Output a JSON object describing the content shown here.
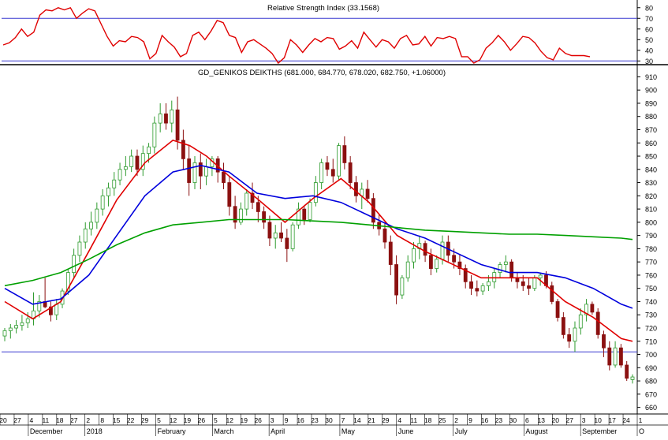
{
  "chart_data": [
    {
      "type": "line",
      "title": "Relative Strength Index (33.1568)",
      "ylim": [
        28,
        85
      ],
      "yticks": [
        30,
        40,
        50,
        60,
        70,
        80
      ],
      "reference_lines": [
        30,
        70
      ],
      "series": [
        {
          "color": "#e00000",
          "x": [
            0,
            2,
            4,
            6,
            8,
            10,
            12,
            14,
            16,
            18,
            20,
            22,
            24,
            26,
            28,
            30,
            32,
            34,
            36,
            38,
            40,
            42,
            44,
            46,
            48,
            50,
            52,
            54,
            56,
            58,
            60,
            62,
            64,
            66,
            68,
            70,
            72,
            74,
            76,
            78,
            80,
            82,
            84,
            86,
            88,
            90,
            92,
            94,
            96,
            98,
            100,
            102,
            104,
            106,
            108,
            110,
            112,
            114,
            116,
            118,
            120,
            122,
            124,
            126,
            128,
            130,
            132,
            134,
            136,
            138,
            140,
            142,
            144,
            146,
            148,
            150,
            152,
            154,
            156,
            158,
            160,
            162,
            164,
            166,
            168,
            170,
            172,
            174,
            176,
            178,
            180,
            182,
            184,
            186,
            188,
            190,
            192
          ],
          "values": [
            45,
            47,
            52,
            60,
            53,
            57,
            73,
            78,
            77,
            80,
            78,
            80,
            70,
            75,
            79,
            77,
            65,
            53,
            44,
            49,
            48,
            53,
            52,
            48,
            32,
            37,
            54,
            48,
            43,
            34,
            37,
            54,
            57,
            50,
            58,
            68,
            66,
            54,
            52,
            38,
            48,
            50,
            46,
            42,
            37,
            28,
            33,
            50,
            45,
            38,
            45,
            51,
            48,
            52,
            51,
            41,
            44,
            49,
            42,
            57,
            50,
            43,
            50,
            48,
            42,
            51,
            54,
            45,
            46,
            53,
            44,
            52,
            51,
            53,
            51,
            34,
            34,
            28,
            31,
            42,
            47,
            54,
            48,
            40,
            46,
            53,
            52,
            47,
            39,
            33,
            31,
            42,
            37,
            35,
            35,
            35,
            34
          ]
        }
      ]
    },
    {
      "type": "candlestick",
      "title": "GD_GENIKOS DEIKTHS (681.000, 684.770, 678.020, 682.750, +1.06000)",
      "ylim": [
        655,
        918
      ],
      "yticks": [
        660,
        670,
        680,
        690,
        700,
        710,
        720,
        730,
        740,
        750,
        760,
        770,
        780,
        790,
        800,
        810,
        820,
        830,
        840,
        850,
        860,
        870,
        880,
        890,
        900,
        910
      ],
      "reference_lines": [
        702
      ],
      "x_tick_labels": [
        "20",
        "27",
        "4",
        "11",
        "18",
        "27",
        "2",
        "8",
        "15",
        "22",
        "29",
        "5",
        "12",
        "19",
        "26",
        "5",
        "12",
        "19",
        "26",
        "3",
        "9",
        "16",
        "23",
        "30",
        "7",
        "14",
        "21",
        "29",
        "4",
        "11",
        "18",
        "25",
        "2",
        "9",
        "16",
        "23",
        "30",
        "6",
        "13",
        "20",
        "27",
        "3",
        "10",
        "17",
        "24",
        "1"
      ],
      "month_labels": [
        "December",
        "2018",
        "February",
        "March",
        "April",
        "May",
        "June",
        "July",
        "August",
        "September",
        "O"
      ],
      "ohlc": [
        [
          714,
          720,
          710,
          718
        ],
        [
          718,
          723,
          712,
          720
        ],
        [
          720,
          726,
          716,
          722
        ],
        [
          722,
          730,
          718,
          724
        ],
        [
          724,
          732,
          720,
          727
        ],
        [
          727,
          747,
          722,
          733
        ],
        [
          733,
          745,
          728,
          740
        ],
        [
          740,
          758,
          735,
          736
        ],
        [
          736,
          740,
          725,
          730
        ],
        [
          730,
          742,
          726,
          738
        ],
        [
          738,
          750,
          735,
          748
        ],
        [
          748,
          765,
          745,
          762
        ],
        [
          762,
          780,
          758,
          775
        ],
        [
          775,
          790,
          770,
          785
        ],
        [
          785,
          800,
          780,
          795
        ],
        [
          795,
          808,
          790,
          800
        ],
        [
          800,
          815,
          795,
          810
        ],
        [
          810,
          825,
          805,
          820
        ],
        [
          820,
          830,
          812,
          826
        ],
        [
          826,
          838,
          820,
          832
        ],
        [
          832,
          845,
          828,
          840
        ],
        [
          840,
          850,
          835,
          842
        ],
        [
          842,
          855,
          838,
          850
        ],
        [
          850,
          855,
          835,
          840
        ],
        [
          840,
          858,
          835,
          852
        ],
        [
          852,
          860,
          845,
          857
        ],
        [
          857,
          880,
          852,
          875
        ],
        [
          875,
          890,
          868,
          882
        ],
        [
          882,
          890,
          870,
          875
        ],
        [
          875,
          892,
          868,
          885
        ],
        [
          885,
          895,
          855,
          862
        ],
        [
          862,
          870,
          840,
          848
        ],
        [
          848,
          858,
          820,
          830
        ],
        [
          830,
          850,
          825,
          845
        ],
        [
          845,
          852,
          825,
          835
        ],
        [
          835,
          848,
          828,
          842
        ],
        [
          842,
          850,
          835,
          848
        ],
        [
          848,
          850,
          830,
          838
        ],
        [
          838,
          845,
          825,
          830
        ],
        [
          830,
          835,
          805,
          812
        ],
        [
          812,
          820,
          795,
          800
        ],
        [
          800,
          815,
          798,
          810
        ],
        [
          810,
          825,
          805,
          822
        ],
        [
          822,
          830,
          810,
          815
        ],
        [
          815,
          820,
          800,
          808
        ],
        [
          808,
          812,
          795,
          800
        ],
        [
          800,
          805,
          782,
          788
        ],
        [
          788,
          798,
          780,
          792
        ],
        [
          792,
          800,
          785,
          788
        ],
        [
          788,
          795,
          770,
          780
        ],
        [
          780,
          800,
          778,
          798
        ],
        [
          798,
          815,
          795,
          810
        ],
        [
          810,
          812,
          798,
          802
        ],
        [
          802,
          818,
          800,
          815
        ],
        [
          815,
          835,
          812,
          830
        ],
        [
          830,
          848,
          825,
          845
        ],
        [
          845,
          850,
          835,
          840
        ],
        [
          840,
          848,
          830,
          835
        ],
        [
          835,
          860,
          832,
          858
        ],
        [
          858,
          865,
          840,
          845
        ],
        [
          845,
          850,
          825,
          830
        ],
        [
          830,
          835,
          815,
          820
        ],
        [
          820,
          830,
          810,
          825
        ],
        [
          825,
          832,
          815,
          818
        ],
        [
          818,
          822,
          795,
          800
        ],
        [
          800,
          806,
          790,
          795
        ],
        [
          795,
          800,
          780,
          785
        ],
        [
          785,
          790,
          760,
          768
        ],
        [
          768,
          775,
          738,
          745
        ],
        [
          745,
          760,
          742,
          758
        ],
        [
          758,
          775,
          755,
          770
        ],
        [
          770,
          785,
          765,
          780
        ],
        [
          780,
          790,
          772,
          784
        ],
        [
          784,
          786,
          770,
          775
        ],
        [
          775,
          780,
          760,
          765
        ],
        [
          765,
          775,
          762,
          772
        ],
        [
          772,
          790,
          768,
          785
        ],
        [
          785,
          790,
          770,
          775
        ],
        [
          775,
          780,
          765,
          770
        ],
        [
          770,
          776,
          760,
          765
        ],
        [
          765,
          768,
          750,
          755
        ],
        [
          755,
          760,
          745,
          750
        ],
        [
          750,
          756,
          744,
          748
        ],
        [
          748,
          754,
          745,
          752
        ],
        [
          752,
          760,
          748,
          755
        ],
        [
          755,
          765,
          750,
          762
        ],
        [
          762,
          770,
          758,
          768
        ],
        [
          768,
          775,
          762,
          770
        ],
        [
          770,
          772,
          755,
          758
        ],
        [
          758,
          762,
          750,
          755
        ],
        [
          755,
          760,
          748,
          752
        ],
        [
          752,
          758,
          745,
          750
        ],
        [
          750,
          760,
          748,
          758
        ],
        [
          758,
          762,
          752,
          760
        ],
        [
          760,
          763,
          750,
          752
        ],
        [
          752,
          755,
          738,
          740
        ],
        [
          740,
          742,
          725,
          728
        ],
        [
          728,
          732,
          712,
          715
        ],
        [
          715,
          720,
          705,
          710
        ],
        [
          710,
          725,
          702,
          720
        ],
        [
          720,
          735,
          715,
          730
        ],
        [
          730,
          742,
          725,
          738
        ],
        [
          738,
          740,
          730,
          732
        ],
        [
          732,
          735,
          712,
          715
        ],
        [
          715,
          718,
          698,
          705
        ],
        [
          705,
          710,
          688,
          692
        ],
        [
          692,
          710,
          690,
          705
        ],
        [
          705,
          708,
          690,
          692
        ],
        [
          692,
          695,
          680,
          682
        ],
        [
          681,
          685,
          678,
          683
        ]
      ],
      "series": [
        {
          "color": "#e00000",
          "x": [
            0,
            5,
            10,
            15,
            20,
            25,
            30,
            33,
            36,
            40,
            45,
            50,
            55,
            60,
            65,
            70,
            75,
            80,
            85,
            90,
            95,
            100,
            105,
            110,
            112
          ],
          "values": [
            740,
            727,
            740,
            778,
            817,
            845,
            862,
            858,
            850,
            835,
            818,
            800,
            818,
            833,
            815,
            790,
            778,
            768,
            758,
            758,
            758,
            740,
            728,
            712,
            710
          ]
        },
        {
          "color": "#0000dd",
          "x": [
            0,
            5,
            10,
            15,
            20,
            25,
            30,
            35,
            40,
            45,
            50,
            55,
            60,
            65,
            70,
            75,
            80,
            85,
            90,
            95,
            100,
            105,
            110,
            112
          ],
          "values": [
            750,
            738,
            742,
            760,
            790,
            820,
            838,
            843,
            838,
            822,
            818,
            820,
            815,
            805,
            795,
            788,
            778,
            768,
            762,
            762,
            758,
            750,
            738,
            735
          ]
        },
        {
          "color": "#00a000",
          "x": [
            0,
            5,
            10,
            15,
            20,
            25,
            30,
            35,
            40,
            45,
            50,
            55,
            60,
            65,
            70,
            75,
            80,
            85,
            90,
            95,
            100,
            105,
            110,
            112
          ],
          "values": [
            752,
            756,
            762,
            772,
            783,
            792,
            798,
            800,
            802,
            802,
            802,
            801,
            800,
            798,
            796,
            794,
            793,
            792,
            791,
            791,
            790,
            789,
            788,
            787
          ]
        }
      ]
    }
  ]
}
